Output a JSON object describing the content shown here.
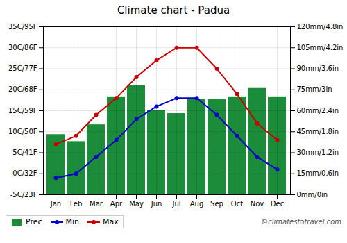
{
  "chart_data": {
    "type": "bar",
    "title": "Climate chart - Padua",
    "categories": [
      "Jan",
      "Feb",
      "Mar",
      "Apr",
      "May",
      "Jun",
      "Jul",
      "Aug",
      "Sep",
      "Oct",
      "Nov",
      "Dec"
    ],
    "series": [
      {
        "name": "Prec",
        "type": "bar",
        "axis": "y2",
        "color": "#1a8c3a",
        "values": [
          43,
          38,
          50,
          70,
          78,
          60,
          58,
          68,
          68,
          70,
          76,
          70
        ]
      },
      {
        "name": "Min",
        "type": "line",
        "color": "#0000cc",
        "marker": "circle",
        "values": [
          -1,
          0,
          4,
          8,
          13,
          16,
          18,
          18,
          14,
          9,
          4,
          1
        ]
      },
      {
        "name": "Max",
        "type": "line",
        "color": "#cc0000",
        "marker": "circle",
        "values": [
          7,
          9,
          14,
          18,
          23,
          27,
          30,
          30,
          25,
          19,
          12,
          8
        ]
      }
    ],
    "ylim": [
      -5,
      35
    ],
    "yticks": [
      {
        "value": -5,
        "label": "-5C/23F"
      },
      {
        "value": 0,
        "label": "0C/32F"
      },
      {
        "value": 5,
        "label": "5C/41F"
      },
      {
        "value": 10,
        "label": "10C/50F"
      },
      {
        "value": 15,
        "label": "15C/59F"
      },
      {
        "value": 20,
        "label": "20C/68F"
      },
      {
        "value": 25,
        "label": "25C/77F"
      },
      {
        "value": 30,
        "label": "30C/86F"
      },
      {
        "value": 35,
        "label": "35C/95F"
      }
    ],
    "y2lim": [
      0,
      120
    ],
    "y2ticks": [
      {
        "value": 0,
        "label": "0mm/0in"
      },
      {
        "value": 15,
        "label": "15mm/0.6in"
      },
      {
        "value": 30,
        "label": "30mm/1.2in"
      },
      {
        "value": 45,
        "label": "45mm/1.8in"
      },
      {
        "value": 60,
        "label": "60mm/2.4in"
      },
      {
        "value": 75,
        "label": "75mm/3in"
      },
      {
        "value": 90,
        "label": "90mm/3.6in"
      },
      {
        "value": 105,
        "label": "105mm/4.2in"
      },
      {
        "value": 120,
        "label": "120mm/4.8in"
      }
    ],
    "grid": true,
    "legend": "lower left",
    "annotations": [
      "©climatestotravel.com"
    ]
  }
}
